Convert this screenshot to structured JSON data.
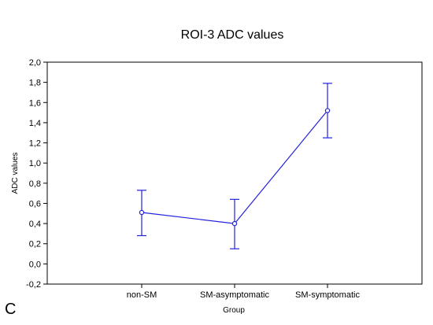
{
  "chart_data": {
    "type": "line",
    "title": "ROI-3 ADC values",
    "xlabel": "Group",
    "ylabel": "ADC values",
    "panel_label": "C",
    "categories": [
      "non-SM",
      "SM-asymptomatic",
      "SM-symptomatic"
    ],
    "series": [
      {
        "values": [
          0.51,
          0.4,
          1.52
        ],
        "error_lower": [
          0.28,
          0.15,
          1.25
        ],
        "error_upper": [
          0.73,
          0.64,
          1.79
        ]
      }
    ],
    "ylim": [
      -0.2,
      2.0
    ],
    "yticks": [
      -0.2,
      0.0,
      0.2,
      0.4,
      0.6,
      0.8,
      1.0,
      1.2,
      1.4,
      1.6,
      1.8,
      2.0
    ],
    "ytick_labels": [
      "-0,2",
      "0,0",
      "0,2",
      "0,4",
      "0,6",
      "0,8",
      "1,0",
      "1,2",
      "1,4",
      "1,6",
      "1,8",
      "2,0"
    ],
    "grid": false,
    "legend": "none",
    "colors": {
      "series": "#2222dd",
      "axes": "#000000"
    }
  }
}
